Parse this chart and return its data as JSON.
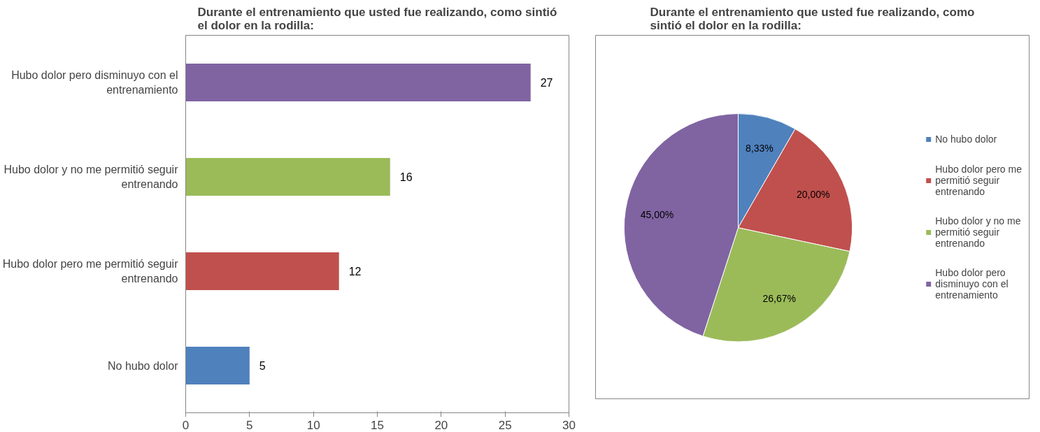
{
  "chart_data": [
    {
      "type": "bar",
      "orientation": "horizontal",
      "title": "Durante el entrenamiento que usted fue realizando, como sintió el dolor en la rodilla:",
      "categories": [
        "Hubo dolor pero disminuyo con el entrenamiento",
        "Hubo dolor y no me permitió seguir entrenando",
        "Hubo dolor pero me permitió seguir entrenando",
        "No hubo dolor"
      ],
      "values": [
        27,
        16,
        12,
        5
      ],
      "colors": [
        "#8064a2",
        "#9bbb59",
        "#c0504d",
        "#4f81bd"
      ],
      "xlim": [
        0,
        30
      ],
      "xticks": [
        0,
        5,
        10,
        15,
        20,
        25,
        30
      ],
      "data_labels": true
    },
    {
      "type": "pie",
      "title": "Durante el entrenamiento que usted fue realizando, como sintió el dolor en la rodilla:",
      "categories": [
        "No hubo dolor",
        "Hubo dolor pero me permitió seguir entrenando",
        "Hubo dolor y no me permitió seguir entrenando",
        "Hubo dolor pero disminuyo con el entrenamiento"
      ],
      "values": [
        8.33,
        20.0,
        26.67,
        45.0
      ],
      "colors": [
        "#4f81bd",
        "#c0504d",
        "#9bbb59",
        "#8064a2"
      ],
      "value_labels": [
        "8,33%",
        "20,00%",
        "26,67%",
        "45,00%"
      ],
      "legend": "right"
    }
  ]
}
